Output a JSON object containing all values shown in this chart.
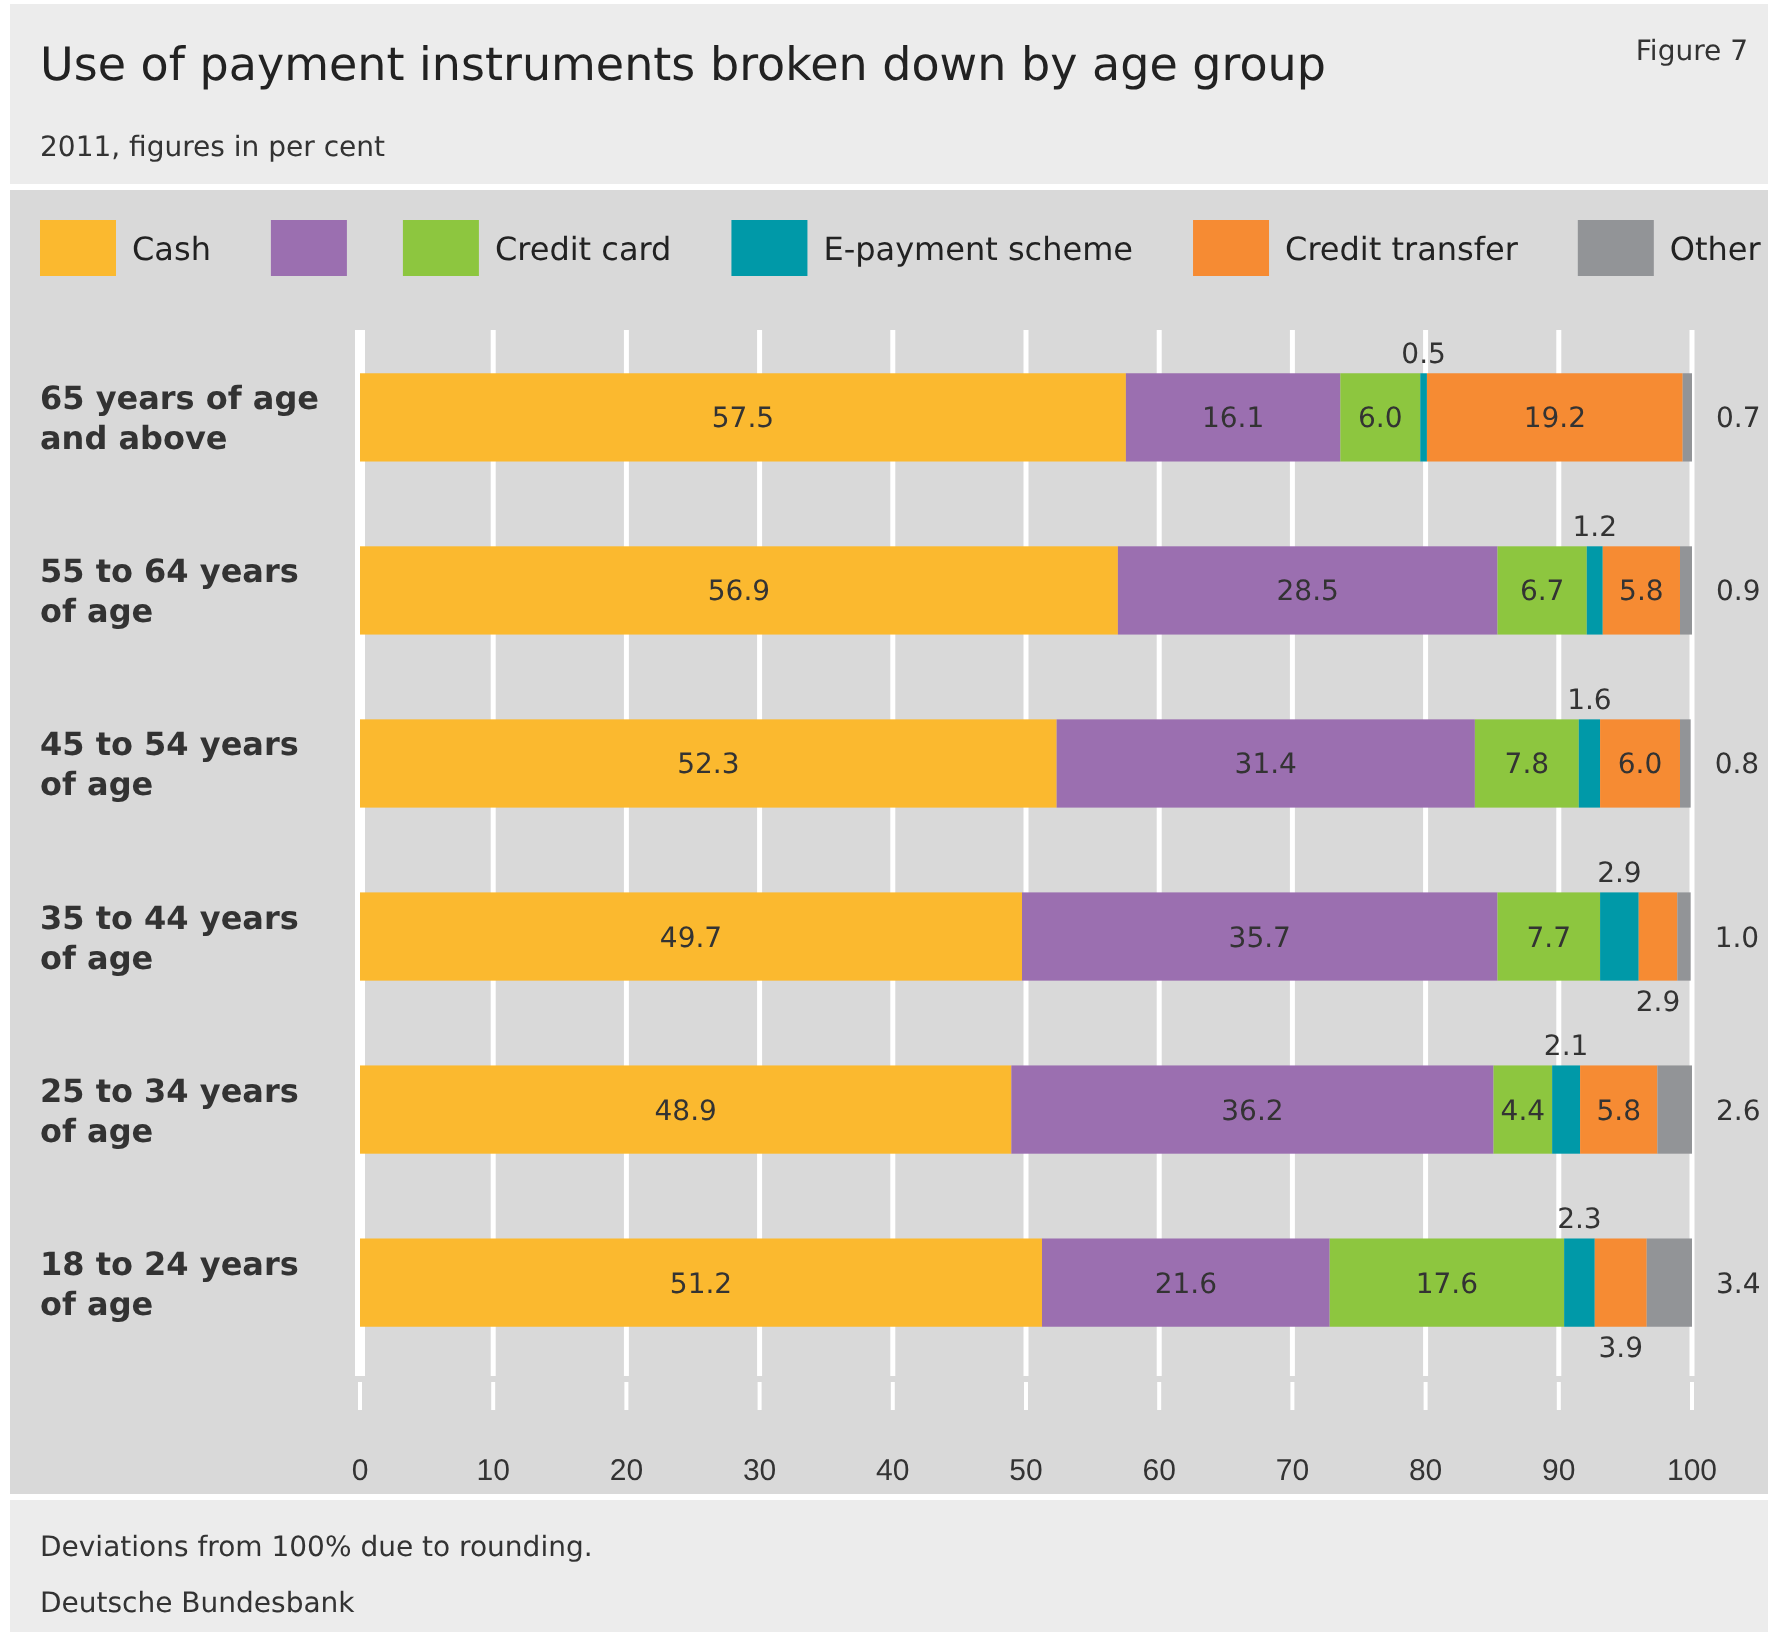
{
  "chart_data": {
    "type": "bar",
    "orientation": "horizontal",
    "stacked": true,
    "title": "Use of payment instruments broken down by age group",
    "subtitle": "2011, figures in per cent",
    "categories": [
      "65 years of age and above",
      "55 to 64 years of age",
      "45 to 54 years of age",
      "35 to 44 years of age",
      "25 to 34 years of age",
      "18 to 24 years of age"
    ],
    "series": [
      {
        "name": "Cash",
        "color": "#fbb92f",
        "values": [
          57.5,
          56.9,
          52.3,
          49.7,
          48.9,
          51.2
        ]
      },
      {
        "color": "#9b6fb0",
        "values": [
          16.1,
          28.5,
          31.4,
          35.7,
          36.2,
          21.6
        ]
      },
      {
        "name": "Credit card",
        "color": "#8dc63f",
        "values": [
          6.0,
          6.7,
          7.8,
          7.7,
          4.4,
          17.6
        ]
      },
      {
        "name": "E-payment scheme",
        "color": "#0099a8",
        "values": [
          0.5,
          1.2,
          1.6,
          2.9,
          2.1,
          2.3
        ]
      },
      {
        "name": "Credit transfer",
        "color": "#f68b33",
        "values": [
          19.2,
          5.8,
          6.0,
          2.9,
          5.8,
          3.9
        ]
      },
      {
        "name": "Other",
        "color": "#929497",
        "values": [
          0.7,
          0.9,
          0.8,
          1.0,
          2.6,
          3.4
        ]
      }
    ],
    "value_labels": [
      [
        "57.5",
        "16.1",
        "6.0",
        "0.5",
        "19.2",
        "0.7"
      ],
      [
        "56.9",
        "28.5",
        "6.7",
        "1.2",
        "5.8",
        "0.9"
      ],
      [
        "52.3",
        "31.4",
        "7.8",
        "1.6",
        "6.0",
        "0.8"
      ],
      [
        "49.7",
        "35.7",
        "7.7",
        "2.9",
        "2.9",
        "1.0"
      ],
      [
        "48.9",
        "36.2",
        "4.4",
        "2.1",
        "5.8",
        "2.6"
      ],
      [
        "51.2",
        "21.6",
        "17.6",
        "2.3",
        "3.9",
        "3.4"
      ]
    ],
    "xlim": [
      0,
      100
    ],
    "xticks": [
      0,
      10,
      20,
      30,
      40,
      50,
      60,
      70,
      80,
      90,
      100
    ],
    "grid": "x",
    "legend": "top",
    "annotations": [
      "Figure 7",
      "Deviations from 100% due to rounding.",
      "Deutsche Bundesbank"
    ]
  }
}
